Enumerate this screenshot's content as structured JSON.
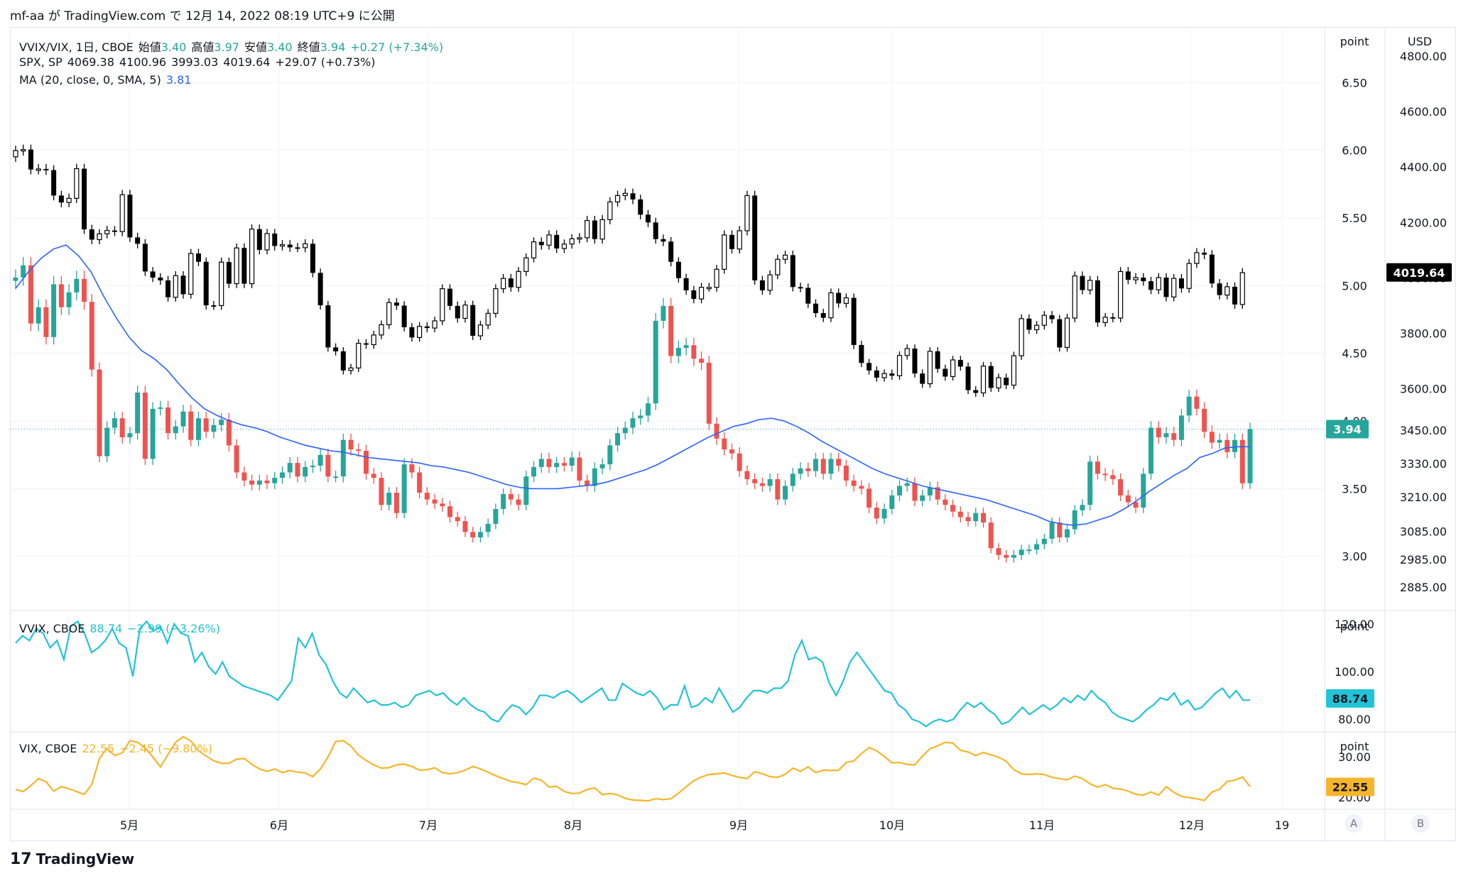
{
  "header": {
    "published_by": "mf-aa が TradingView.com で 12月 14, 2022 08:19 UTC+9 に公開"
  },
  "legend": {
    "main": {
      "symbol": "VVIX/VIX, 1日, CBOE",
      "open_label": "始値",
      "open": "3.40",
      "high_label": "高値",
      "high": "3.97",
      "low_label": "安値",
      "low": "3.40",
      "close_label": "終値",
      "close": "3.94",
      "change": "+0.27 (+7.34%)"
    },
    "spx": {
      "symbol": "SPX, SP",
      "o": "4069.38",
      "h": "4100.96",
      "l": "3993.03",
      "c": "4019.64",
      "change": "+29.07 (+0.73%)"
    },
    "ma": {
      "label": "MA (20, close, 0, SMA, 5)",
      "value": "3.81"
    },
    "vvix": {
      "symbol": "VVIX, CBOE",
      "value": "88.74",
      "change": "−2.99 (−3.26%)"
    },
    "vix": {
      "symbol": "VIX, CBOE",
      "value": "22.55",
      "change": "−2.45 (−9.80%)"
    }
  },
  "scales": {
    "left_unit": "point",
    "right_unit": "USD",
    "main_point_ticks": [
      "6.50",
      "6.00",
      "5.50",
      "5.00",
      "4.50",
      "4.00",
      "3.50",
      "3.00"
    ],
    "usd_ticks": [
      "4800.00",
      "4600.00",
      "4400.00",
      "4200.00",
      "4000.00",
      "3800.00",
      "3600.00",
      "3450.00",
      "3330.00",
      "3210.00",
      "3085.00",
      "2985.00",
      "2885.00"
    ],
    "vvix_ticks": [
      "120.00",
      "100.00",
      "80.00"
    ],
    "vix_ticks": [
      "30.00",
      "20.00"
    ],
    "badges": {
      "ratio": "3.94",
      "spx": "4019.64",
      "vvix": "88.74",
      "vix": "22.55"
    },
    "scale_buttons": [
      "A",
      "B"
    ]
  },
  "time_axis": [
    "5月",
    "6月",
    "7月",
    "8月",
    "9月",
    "10月",
    "11月",
    "12月",
    "19"
  ],
  "footer": {
    "logo_text": "TradingView"
  },
  "colors": {
    "up": "#26a69a",
    "down": "#ef5350",
    "ma": "#2962ff",
    "vvix": "#22c3d6",
    "vix": "#f7b529",
    "spx": "#000000"
  },
  "chart_data": [
    {
      "type": "candlestick",
      "title": "VVIX/VIX",
      "unit": "point",
      "ylim": [
        2.6,
        6.9
      ],
      "note_ma": "MA (20, close, 0, SMA, 5)",
      "close": [
        5.06,
        5.15,
        4.72,
        4.84,
        4.62,
        5.01,
        4.84,
        4.95,
        5.05,
        4.88,
        4.38,
        3.74,
        3.95,
        4.02,
        3.88,
        3.91,
        4.21,
        3.72,
        4.09,
        4.1,
        3.91,
        3.96,
        4.07,
        3.86,
        4.02,
        3.92,
        3.97,
        4.01,
        3.82,
        3.62,
        3.56,
        3.53,
        3.56,
        3.54,
        3.58,
        3.62,
        3.69,
        3.59,
        3.66,
        3.67,
        3.75,
        3.59,
        3.59,
        3.86,
        3.79,
        3.78,
        3.61,
        3.58,
        3.38,
        3.47,
        3.32,
        3.68,
        3.62,
        3.47,
        3.42,
        3.39,
        3.37,
        3.29,
        3.26,
        3.18,
        3.14,
        3.18,
        3.24,
        3.35,
        3.46,
        3.42,
        3.38,
        3.59,
        3.66,
        3.72,
        3.66,
        3.69,
        3.67,
        3.73,
        3.56,
        3.52,
        3.65,
        3.68,
        3.82,
        3.91,
        3.95,
        4.02,
        4.04,
        4.13,
        4.74,
        4.85,
        4.48,
        4.54,
        4.56,
        4.46,
        4.43,
        3.98,
        3.87,
        3.79,
        3.76,
        3.63,
        3.57,
        3.54,
        3.52,
        3.57,
        3.42,
        3.52,
        3.61,
        3.65,
        3.63,
        3.72,
        3.61,
        3.72,
        3.67,
        3.56,
        3.52,
        3.5,
        3.36,
        3.28,
        3.35,
        3.45,
        3.52,
        3.54,
        3.41,
        3.45,
        3.51,
        3.42,
        3.38,
        3.33,
        3.29,
        3.26,
        3.32,
        3.25,
        3.06,
        3.01,
        2.99,
        3.01,
        3.05,
        3.05,
        3.09,
        3.13,
        3.25,
        3.14,
        3.2,
        3.34,
        3.38,
        3.7,
        3.61,
        3.6,
        3.57,
        3.45,
        3.4,
        3.36,
        3.61,
        3.95,
        3.88,
        3.91,
        3.86,
        4.04,
        4.18,
        4.09,
        3.92,
        3.84,
        3.86,
        3.77,
        3.86,
        3.54,
        3.94
      ],
      "ma20": [
        4.98,
        5.1,
        5.2,
        5.27,
        5.3,
        5.22,
        5.1,
        4.92,
        4.76,
        4.62,
        4.52,
        4.46,
        4.38,
        4.27,
        4.17,
        4.09,
        4.04,
        4.0,
        3.97,
        3.95,
        3.92,
        3.88,
        3.85,
        3.82,
        3.8,
        3.78,
        3.77,
        3.75,
        3.73,
        3.72,
        3.71,
        3.7,
        3.69,
        3.67,
        3.66,
        3.64,
        3.62,
        3.59,
        3.56,
        3.53,
        3.51,
        3.5,
        3.5,
        3.5,
        3.51,
        3.52,
        3.53,
        3.55,
        3.58,
        3.61,
        3.64,
        3.68,
        3.73,
        3.78,
        3.83,
        3.88,
        3.92,
        3.96,
        3.98,
        4.01,
        4.02,
        4.0,
        3.96,
        3.91,
        3.85,
        3.8,
        3.75,
        3.7,
        3.65,
        3.61,
        3.58,
        3.55,
        3.52,
        3.5,
        3.48,
        3.46,
        3.44,
        3.42,
        3.39,
        3.36,
        3.33,
        3.3,
        3.26,
        3.24,
        3.23,
        3.24,
        3.27,
        3.3,
        3.35,
        3.41,
        3.48,
        3.54,
        3.6,
        3.65,
        3.73,
        3.76,
        3.8,
        3.81,
        3.81
      ]
    },
    {
      "type": "candlestick",
      "title": "SPX, SP",
      "unit": "USD",
      "ylim": [
        2800,
        4900
      ],
      "close": [
        4459,
        4463,
        4391,
        4393,
        4389,
        4297,
        4272,
        4287,
        4394,
        4175,
        4138,
        4159,
        4171,
        4167,
        4300,
        4146,
        4123,
        4023,
        4001,
        3991,
        3930,
        4008,
        3941,
        4088,
        4058,
        3901,
        3900,
        4057,
        3979,
        4108,
        3979,
        4176,
        4101,
        4160,
        4115,
        4120,
        4110,
        4109,
        4123,
        4018,
        3901,
        3749,
        3735,
        3666,
        3675,
        3764,
        3759,
        3794,
        3831,
        3911,
        3900,
        3822,
        3785,
        3825,
        3819,
        3845,
        3961,
        3899,
        3854,
        3902,
        3791,
        3830,
        3872,
        3961,
        3998,
        3966,
        4023,
        4072,
        4130,
        4118,
        4155,
        4106,
        4122,
        4141,
        4145,
        4207,
        4140,
        4210,
        4274,
        4297,
        4305,
        4283,
        4228,
        4200,
        4140,
        4131,
        4058,
        3999,
        3955,
        3924,
        3966,
        3966,
        4031,
        4155,
        4104,
        4170,
        4297,
        3991,
        3955,
        4011,
        4067,
        4082,
        3967,
        3964,
        3907,
        3873,
        3856,
        3946,
        3908,
        3928,
        3758,
        3693,
        3666,
        3640,
        3655,
        3647,
        3720,
        3745,
        3655,
        3618,
        3735,
        3672,
        3644,
        3704,
        3680,
        3595,
        3585,
        3682,
        3603,
        3640,
        3613,
        3719,
        3853,
        3813,
        3829,
        3865,
        3851,
        3749,
        3855,
        4007,
        3956,
        3991,
        3839,
        3858,
        3855,
        4023,
        3993,
        4001,
        3988,
        3957,
        4001,
        3931,
        3998,
        3962,
        4052,
        4091,
        4084,
        3980,
        3938,
        3968,
        3904,
        4019
      ]
    },
    {
      "type": "line",
      "title": "VVIX, CBOE",
      "unit": "point",
      "ylim": [
        75,
        125
      ],
      "values": [
        112,
        115,
        113,
        118,
        116,
        110,
        113,
        105,
        119,
        121,
        116,
        108,
        110,
        113,
        118,
        112,
        110,
        98,
        118,
        121,
        117,
        119,
        112,
        120,
        116,
        115,
        104,
        108,
        102,
        99,
        104,
        98,
        96,
        94,
        93,
        92,
        91,
        90,
        88,
        92,
        96,
        114,
        110,
        116,
        107,
        103,
        96,
        91,
        89,
        93,
        90,
        87,
        88,
        86,
        86,
        87,
        85,
        86,
        90,
        91,
        92,
        90,
        91,
        88,
        86,
        89,
        86,
        84,
        83,
        80,
        79,
        83,
        86,
        85,
        82,
        85,
        90,
        90,
        89,
        91,
        92,
        90,
        87,
        89,
        91,
        93,
        88,
        88,
        95,
        93,
        91,
        90,
        92,
        89,
        84,
        86,
        86,
        94,
        85,
        86,
        89,
        87,
        93,
        88,
        83,
        85,
        89,
        92,
        92,
        91,
        93,
        93,
        96,
        107,
        113,
        105,
        106,
        104,
        95,
        90,
        96,
        104,
        108,
        104,
        100,
        96,
        92,
        91,
        86,
        84,
        80,
        79,
        77,
        79,
        80,
        79,
        80,
        84,
        87,
        85,
        87,
        84,
        82,
        78,
        79,
        82,
        85,
        82,
        84,
        86,
        84,
        86,
        89,
        87,
        90,
        88,
        92,
        89,
        87,
        83,
        81,
        80,
        79,
        81,
        84,
        86,
        89,
        88,
        91,
        86,
        88,
        84,
        85,
        88,
        91,
        93,
        89,
        92,
        88,
        88
      ]
    },
    {
      "type": "line",
      "title": "VIX, CBOE",
      "unit": "point",
      "ylim": [
        17,
        36
      ],
      "values": [
        21.9,
        21.4,
        22.9,
        24.6,
        23.8,
        21.5,
        22.6,
        22.1,
        21.4,
        20.7,
        23.2,
        29.6,
        32.1,
        30.3,
        31.0,
        34.0,
        33.6,
        32.2,
        30.0,
        27.5,
        30.6,
        33.6,
        35.0,
        33.9,
        31.5,
        30.2,
        29.0,
        28.4,
        28.4,
        29.4,
        29.6,
        28.1,
        27.0,
        26.4,
        27.0,
        26.1,
        26.6,
        26.2,
        26.0,
        25.1,
        27.0,
        30.0,
        33.8,
        34.0,
        32.7,
        30.4,
        29.1,
        28.0,
        27.2,
        27.3,
        28.0,
        28.2,
        27.6,
        26.7,
        26.8,
        27.3,
        26.1,
        25.8,
        26.1,
        26.7,
        27.6,
        27.0,
        26.2,
        25.3,
        24.6,
        23.9,
        23.6,
        23.1,
        24.7,
        24.2,
        22.5,
        22.7,
        21.4,
        20.9,
        21.0,
        21.9,
        22.3,
        20.6,
        20.9,
        20.6,
        19.7,
        19.3,
        19.2,
        19.1,
        19.6,
        19.4,
        19.6,
        21.0,
        22.6,
        24.1,
        25.0,
        25.6,
        25.8,
        26.0,
        25.4,
        24.9,
        24.6,
        26.3,
        25.8,
        25.1,
        24.9,
        25.7,
        27.2,
        26.4,
        27.5,
        26.1,
        26.7,
        26.6,
        26.7,
        28.6,
        29.0,
        30.8,
        32.3,
        31.5,
        30.1,
        28.5,
        28.6,
        28.1,
        28.0,
        30.2,
        32.0,
        32.7,
        33.6,
        33.4,
        31.6,
        31.2,
        30.3,
        31.1,
        30.5,
        29.9,
        28.9,
        26.8,
        25.8,
        25.6,
        25.8,
        25.6,
        24.9,
        24.6,
        24.3,
        25.2,
        24.6,
        23.3,
        22.5,
        23.1,
        22.2,
        22.0,
        21.5,
        20.7,
        20.5,
        21.3,
        20.5,
        22.6,
        21.2,
        20.2,
        19.9,
        19.6,
        19.2,
        21.3,
        22.0,
        23.9,
        24.2,
        25.0,
        22.6
      ]
    }
  ]
}
